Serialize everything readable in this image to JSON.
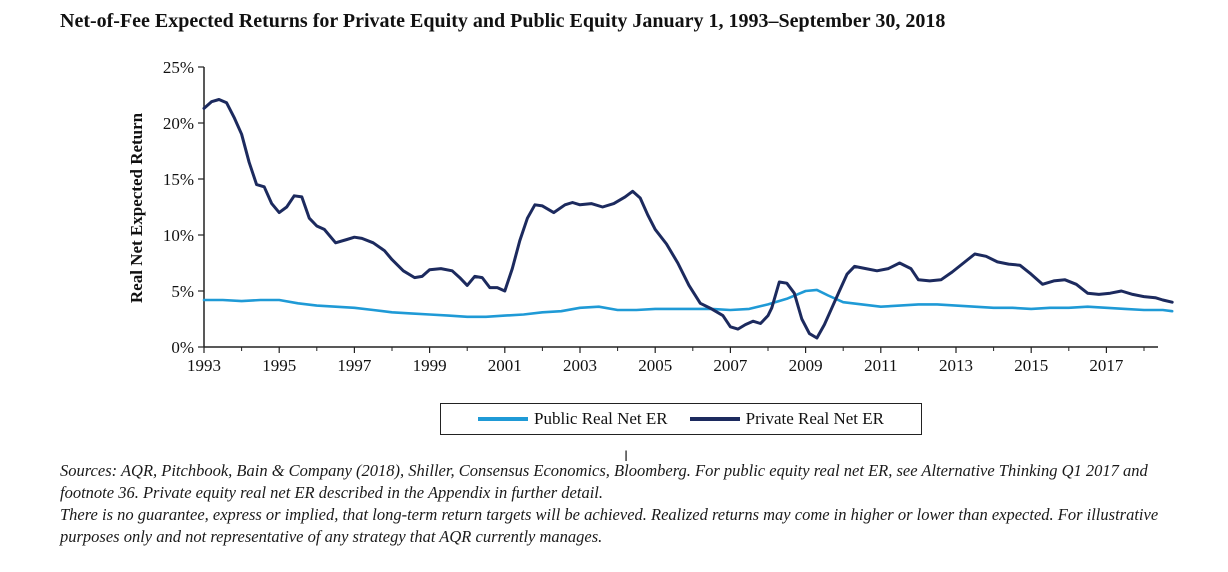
{
  "page": {
    "title": "Net-of-Fee Expected Returns for Private Equity and Public Equity January 1, 1993–September 30, 2018",
    "sources": [
      "Sources: AQR, Pitchbook, Bain & Company (2018), Shiller, Consensus Economics, Bloomberg. For public equity real net ER, see Alternative Thinking Q1 2017 and footnote 36. Private equity real net ER described in the Appendix in further detail.",
      "There is no guarantee, express or implied, that long-term return targets will be achieved. Realized returns may come in higher or lower than expected. For illustrative purposes only and not representative of any strategy that AQR currently manages."
    ]
  },
  "colors": {
    "public": "#1f9ad6",
    "private": "#1c2a5e",
    "axis": "#222222"
  },
  "chart_data": {
    "type": "line",
    "title": "Net-of-Fee Expected Returns for Private Equity and Public Equity January 1, 1993–September 30, 2018",
    "xlabel": "",
    "ylabel": "Real Net Expected Return",
    "xlim": [
      1993,
      2018.75
    ],
    "ylim": [
      0,
      25
    ],
    "xticks": [
      1993,
      1995,
      1997,
      1999,
      2001,
      2003,
      2005,
      2007,
      2009,
      2011,
      2013,
      2015,
      2017
    ],
    "xtick_labels": [
      "1993",
      "1995",
      "1997",
      "1999",
      "2001",
      "2003",
      "2005",
      "2007",
      "2009",
      "2011",
      "2013",
      "2015",
      "2017"
    ],
    "yticks": [
      0,
      5,
      10,
      15,
      20,
      25
    ],
    "ytick_labels": [
      "0%",
      "5%",
      "10%",
      "15%",
      "20%",
      "25%"
    ],
    "grid": false,
    "legend_position": "bottom-center",
    "series": [
      {
        "name": "Public Real Net ER",
        "x": [
          1993.0,
          1993.5,
          1994.0,
          1994.5,
          1995.0,
          1995.5,
          1996.0,
          1996.5,
          1997.0,
          1997.5,
          1998.0,
          1998.5,
          1999.0,
          1999.5,
          2000.0,
          2000.5,
          2001.0,
          2001.5,
          2002.0,
          2002.5,
          2003.0,
          2003.5,
          2004.0,
          2004.5,
          2005.0,
          2005.5,
          2006.0,
          2006.5,
          2007.0,
          2007.5,
          2008.0,
          2008.5,
          2009.0,
          2009.3,
          2009.6,
          2010.0,
          2010.5,
          2011.0,
          2011.5,
          2012.0,
          2012.5,
          2013.0,
          2013.5,
          2014.0,
          2014.5,
          2015.0,
          2015.5,
          2016.0,
          2016.5,
          2017.0,
          2017.5,
          2018.0,
          2018.5,
          2018.75
        ],
        "values": [
          4.2,
          4.2,
          4.1,
          4.2,
          4.2,
          3.9,
          3.7,
          3.6,
          3.5,
          3.3,
          3.1,
          3.0,
          2.9,
          2.8,
          2.7,
          2.7,
          2.8,
          2.9,
          3.1,
          3.2,
          3.5,
          3.6,
          3.3,
          3.3,
          3.4,
          3.4,
          3.4,
          3.4,
          3.3,
          3.4,
          3.8,
          4.3,
          5.0,
          5.1,
          4.6,
          4.0,
          3.8,
          3.6,
          3.7,
          3.8,
          3.8,
          3.7,
          3.6,
          3.5,
          3.5,
          3.4,
          3.5,
          3.5,
          3.6,
          3.5,
          3.4,
          3.3,
          3.3,
          3.2
        ]
      },
      {
        "name": "Private Real Net ER",
        "x": [
          1993.0,
          1993.2,
          1993.4,
          1993.6,
          1993.8,
          1994.0,
          1994.2,
          1994.4,
          1994.6,
          1994.8,
          1995.0,
          1995.2,
          1995.4,
          1995.6,
          1995.8,
          1996.0,
          1996.2,
          1996.5,
          1996.8,
          1997.0,
          1997.2,
          1997.5,
          1997.8,
          1998.0,
          1998.3,
          1998.6,
          1998.8,
          1999.0,
          1999.3,
          1999.6,
          1999.8,
          2000.0,
          2000.2,
          2000.4,
          2000.6,
          2000.8,
          2001.0,
          2001.2,
          2001.4,
          2001.6,
          2001.8,
          2002.0,
          2002.3,
          2002.6,
          2002.8,
          2003.0,
          2003.3,
          2003.6,
          2003.9,
          2004.2,
          2004.4,
          2004.6,
          2004.8,
          2005.0,
          2005.3,
          2005.6,
          2005.9,
          2006.2,
          2006.5,
          2006.8,
          2007.0,
          2007.2,
          2007.4,
          2007.6,
          2007.8,
          2008.0,
          2008.1,
          2008.3,
          2008.5,
          2008.7,
          2008.9,
          2009.1,
          2009.3,
          2009.5,
          2009.7,
          2009.9,
          2010.1,
          2010.3,
          2010.6,
          2010.9,
          2011.2,
          2011.5,
          2011.8,
          2012.0,
          2012.3,
          2012.6,
          2012.9,
          2013.2,
          2013.5,
          2013.8,
          2014.1,
          2014.4,
          2014.7,
          2015.0,
          2015.3,
          2015.6,
          2015.9,
          2016.2,
          2016.5,
          2016.8,
          2017.1,
          2017.4,
          2017.7,
          2018.0,
          2018.3,
          2018.5,
          2018.75
        ],
        "values": [
          21.3,
          21.9,
          22.1,
          21.8,
          20.5,
          19.0,
          16.5,
          14.5,
          14.3,
          12.8,
          12.0,
          12.5,
          13.5,
          13.4,
          11.5,
          10.8,
          10.5,
          9.3,
          9.6,
          9.8,
          9.7,
          9.3,
          8.6,
          7.8,
          6.8,
          6.2,
          6.3,
          6.9,
          7.0,
          6.8,
          6.2,
          5.5,
          6.3,
          6.2,
          5.3,
          5.3,
          5.0,
          7.0,
          9.5,
          11.5,
          12.7,
          12.6,
          12.0,
          12.7,
          12.9,
          12.7,
          12.8,
          12.5,
          12.8,
          13.4,
          13.9,
          13.3,
          11.8,
          10.5,
          9.2,
          7.5,
          5.5,
          3.9,
          3.4,
          2.8,
          1.8,
          1.6,
          2.0,
          2.3,
          2.1,
          2.8,
          3.5,
          5.8,
          5.7,
          4.8,
          2.5,
          1.2,
          0.8,
          2.0,
          3.5,
          5.0,
          6.5,
          7.2,
          7.0,
          6.8,
          7.0,
          7.5,
          7.0,
          6.0,
          5.9,
          6.0,
          6.7,
          7.5,
          8.3,
          8.1,
          7.6,
          7.4,
          7.3,
          6.5,
          5.6,
          5.9,
          6.0,
          5.6,
          4.8,
          4.7,
          4.8,
          5.0,
          4.7,
          4.5,
          4.4,
          4.2,
          4.0
        ]
      }
    ]
  }
}
